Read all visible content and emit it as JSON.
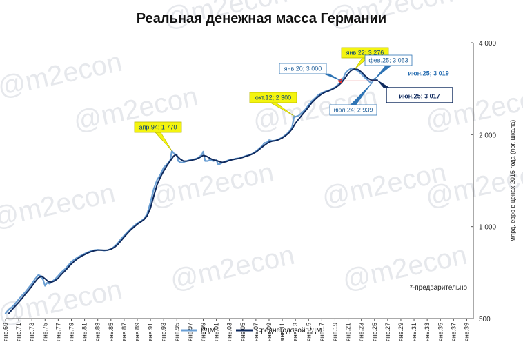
{
  "chart_data": {
    "type": "line",
    "title": "Реальная денежная масса Германии",
    "ylabel": "млрд. евро в ценах 2015 года (лог. шкала)",
    "y_scale": "log",
    "ylim": [
      500,
      4000
    ],
    "y_ticks": [
      500,
      1000,
      2000,
      4000
    ],
    "y_tick_labels": [
      "500",
      "1 000",
      "2 000",
      "4 000"
    ],
    "x_range": [
      1969,
      2040
    ],
    "x_ticks": [
      "янв.69",
      "янв.71",
      "янв.73",
      "янв.75",
      "янв.77",
      "янв.79",
      "янв.81",
      "янв.83",
      "янв.85",
      "янв.87",
      "янв.89",
      "янв.91",
      "янв.93",
      "янв.95",
      "янв.97",
      "янв.99",
      "янв.01",
      "янв.03",
      "янв.05",
      "янв.07",
      "янв.09",
      "янв.11",
      "янв.13",
      "янв.15",
      "янв.17",
      "янв.19",
      "янв.21",
      "янв.23",
      "янв.25",
      "янв.27",
      "янв.29",
      "янв.31",
      "янв.33",
      "янв.35",
      "янв.37",
      "янв.39"
    ],
    "grid": false,
    "legend_position": "bottom",
    "series": [
      {
        "name": "РДМ",
        "color": "#6a9fd4",
        "points": [
          [
            1969.0,
            520
          ],
          [
            1969.5,
            535
          ],
          [
            1970.0,
            545
          ],
          [
            1970.5,
            560
          ],
          [
            1971.0,
            578
          ],
          [
            1971.5,
            595
          ],
          [
            1972.0,
            610
          ],
          [
            1972.5,
            630
          ],
          [
            1973.0,
            650
          ],
          [
            1973.5,
            675
          ],
          [
            1974.0,
            695
          ],
          [
            1974.3,
            690
          ],
          [
            1974.7,
            670
          ],
          [
            1975.0,
            640
          ],
          [
            1975.3,
            655
          ],
          [
            1975.7,
            650
          ],
          [
            1976.0,
            660
          ],
          [
            1976.5,
            672
          ],
          [
            1977.0,
            690
          ],
          [
            1977.5,
            710
          ],
          [
            1978.0,
            725
          ],
          [
            1978.5,
            745
          ],
          [
            1979.0,
            768
          ],
          [
            1979.5,
            782
          ],
          [
            1980.0,
            795
          ],
          [
            1980.5,
            805
          ],
          [
            1981.0,
            815
          ],
          [
            1981.5,
            825
          ],
          [
            1982.0,
            832
          ],
          [
            1982.5,
            838
          ],
          [
            1983.0,
            840
          ],
          [
            1983.5,
            838
          ],
          [
            1984.0,
            835
          ],
          [
            1984.5,
            838
          ],
          [
            1985.0,
            845
          ],
          [
            1985.5,
            860
          ],
          [
            1986.0,
            880
          ],
          [
            1986.5,
            910
          ],
          [
            1987.0,
            935
          ],
          [
            1987.5,
            960
          ],
          [
            1988.0,
            985
          ],
          [
            1988.5,
            1005
          ],
          [
            1989.0,
            1025
          ],
          [
            1989.5,
            1040
          ],
          [
            1990.0,
            1060
          ],
          [
            1990.5,
            1100
          ],
          [
            1991.0,
            1200
          ],
          [
            1991.5,
            1330
          ],
          [
            1992.0,
            1420
          ],
          [
            1992.5,
            1480
          ],
          [
            1993.0,
            1560
          ],
          [
            1993.5,
            1600
          ],
          [
            1994.0,
            1650
          ],
          [
            1994.25,
            1770
          ],
          [
            1994.6,
            1730
          ],
          [
            1995.0,
            1720
          ],
          [
            1995.2,
            1640
          ],
          [
            1995.6,
            1620
          ],
          [
            1996.0,
            1625
          ],
          [
            1996.5,
            1640
          ],
          [
            1997.0,
            1655
          ],
          [
            1997.5,
            1660
          ],
          [
            1998.0,
            1670
          ],
          [
            1998.5,
            1700
          ],
          [
            1998.8,
            1720
          ],
          [
            1999.0,
            1760
          ],
          [
            1999.3,
            1640
          ],
          [
            1999.7,
            1640
          ],
          [
            2000.0,
            1655
          ],
          [
            2000.5,
            1640
          ],
          [
            2001.0,
            1650
          ],
          [
            2001.3,
            1595
          ],
          [
            2001.7,
            1610
          ],
          [
            2002.0,
            1625
          ],
          [
            2002.5,
            1640
          ],
          [
            2003.0,
            1655
          ],
          [
            2003.5,
            1660
          ],
          [
            2004.0,
            1670
          ],
          [
            2004.5,
            1675
          ],
          [
            2005.0,
            1690
          ],
          [
            2005.5,
            1705
          ],
          [
            2006.0,
            1715
          ],
          [
            2006.5,
            1735
          ],
          [
            2007.0,
            1765
          ],
          [
            2007.5,
            1800
          ],
          [
            2008.0,
            1840
          ],
          [
            2008.3,
            1880
          ],
          [
            2008.6,
            1880
          ],
          [
            2009.0,
            1920
          ],
          [
            2009.5,
            1910
          ],
          [
            2010.0,
            1915
          ],
          [
            2010.5,
            1935
          ],
          [
            2011.0,
            1960
          ],
          [
            2011.5,
            1995
          ],
          [
            2012.0,
            2040
          ],
          [
            2012.5,
            2120
          ],
          [
            2012.8,
            2300
          ],
          [
            2013.0,
            2290
          ],
          [
            2013.5,
            2310
          ],
          [
            2014.0,
            2360
          ],
          [
            2014.5,
            2420
          ],
          [
            2015.0,
            2500
          ],
          [
            2015.5,
            2580
          ],
          [
            2016.0,
            2640
          ],
          [
            2016.5,
            2700
          ],
          [
            2017.0,
            2740
          ],
          [
            2017.5,
            2770
          ],
          [
            2018.0,
            2790
          ],
          [
            2018.5,
            2820
          ],
          [
            2019.0,
            2860
          ],
          [
            2019.5,
            2920
          ],
          [
            2020.0,
            3000
          ],
          [
            2020.3,
            3080
          ],
          [
            2020.6,
            3180
          ],
          [
            2021.0,
            3250
          ],
          [
            2021.5,
            3300
          ],
          [
            2022.0,
            3276
          ],
          [
            2022.5,
            3230
          ],
          [
            2023.0,
            3160
          ],
          [
            2023.5,
            3080
          ],
          [
            2024.0,
            3020
          ],
          [
            2024.5,
            2939
          ],
          [
            2025.0,
            3053
          ],
          [
            2025.42,
            3019
          ]
        ]
      },
      {
        "name": "Среднегодовой РДМ",
        "color": "#0f2a5e",
        "points": [
          [
            1969.5,
            520
          ],
          [
            1970.0,
            535
          ],
          [
            1970.5,
            550
          ],
          [
            1971.0,
            565
          ],
          [
            1971.5,
            582
          ],
          [
            1972.0,
            600
          ],
          [
            1972.5,
            618
          ],
          [
            1973.0,
            638
          ],
          [
            1973.5,
            660
          ],
          [
            1974.0,
            680
          ],
          [
            1974.5,
            688
          ],
          [
            1975.0,
            675
          ],
          [
            1975.5,
            660
          ],
          [
            1976.0,
            658
          ],
          [
            1976.5,
            665
          ],
          [
            1977.0,
            678
          ],
          [
            1977.5,
            698
          ],
          [
            1978.0,
            715
          ],
          [
            1978.5,
            735
          ],
          [
            1979.0,
            755
          ],
          [
            1979.5,
            772
          ],
          [
            1980.0,
            787
          ],
          [
            1980.5,
            800
          ],
          [
            1981.0,
            810
          ],
          [
            1981.5,
            820
          ],
          [
            1982.0,
            828
          ],
          [
            1982.5,
            834
          ],
          [
            1983.0,
            838
          ],
          [
            1983.5,
            838
          ],
          [
            1984.0,
            837
          ],
          [
            1984.5,
            838
          ],
          [
            1985.0,
            843
          ],
          [
            1985.5,
            855
          ],
          [
            1986.0,
            872
          ],
          [
            1986.5,
            897
          ],
          [
            1987.0,
            925
          ],
          [
            1987.5,
            950
          ],
          [
            1988.0,
            975
          ],
          [
            1988.5,
            997
          ],
          [
            1989.0,
            1018
          ],
          [
            1989.5,
            1035
          ],
          [
            1990.0,
            1053
          ],
          [
            1990.5,
            1085
          ],
          [
            1991.0,
            1150
          ],
          [
            1991.5,
            1260
          ],
          [
            1992.0,
            1370
          ],
          [
            1992.5,
            1450
          ],
          [
            1993.0,
            1520
          ],
          [
            1993.5,
            1585
          ],
          [
            1994.0,
            1640
          ],
          [
            1994.5,
            1700
          ],
          [
            1994.8,
            1720
          ],
          [
            1995.0,
            1705
          ],
          [
            1995.5,
            1665
          ],
          [
            1996.0,
            1640
          ],
          [
            1996.5,
            1638
          ],
          [
            1997.0,
            1645
          ],
          [
            1997.5,
            1655
          ],
          [
            1998.0,
            1665
          ],
          [
            1998.5,
            1685
          ],
          [
            1999.0,
            1710
          ],
          [
            1999.5,
            1700
          ],
          [
            2000.0,
            1675
          ],
          [
            2000.5,
            1655
          ],
          [
            2001.0,
            1648
          ],
          [
            2001.5,
            1630
          ],
          [
            2002.0,
            1622
          ],
          [
            2002.5,
            1632
          ],
          [
            2003.0,
            1648
          ],
          [
            2003.5,
            1658
          ],
          [
            2004.0,
            1666
          ],
          [
            2004.5,
            1673
          ],
          [
            2005.0,
            1685
          ],
          [
            2005.5,
            1700
          ],
          [
            2006.0,
            1712
          ],
          [
            2006.5,
            1730
          ],
          [
            2007.0,
            1755
          ],
          [
            2007.5,
            1788
          ],
          [
            2008.0,
            1825
          ],
          [
            2008.5,
            1860
          ],
          [
            2009.0,
            1890
          ],
          [
            2009.5,
            1905
          ],
          [
            2010.0,
            1912
          ],
          [
            2010.5,
            1928
          ],
          [
            2011.0,
            1952
          ],
          [
            2011.5,
            1985
          ],
          [
            2012.0,
            2025
          ],
          [
            2012.5,
            2090
          ],
          [
            2013.0,
            2180
          ],
          [
            2013.5,
            2250
          ],
          [
            2014.0,
            2320
          ],
          [
            2014.5,
            2390
          ],
          [
            2015.0,
            2465
          ],
          [
            2015.5,
            2545
          ],
          [
            2016.0,
            2610
          ],
          [
            2016.5,
            2670
          ],
          [
            2017.0,
            2720
          ],
          [
            2017.5,
            2755
          ],
          [
            2018.0,
            2780
          ],
          [
            2018.5,
            2810
          ],
          [
            2019.0,
            2845
          ],
          [
            2019.5,
            2895
          ],
          [
            2020.0,
            2960
          ],
          [
            2020.5,
            3060
          ],
          [
            2021.0,
            3170
          ],
          [
            2021.5,
            3250
          ],
          [
            2022.0,
            3285
          ],
          [
            2022.5,
            3270
          ],
          [
            2023.0,
            3210
          ],
          [
            2023.5,
            3130
          ],
          [
            2024.0,
            3060
          ],
          [
            2024.5,
            3020
          ],
          [
            2025.0,
            3015
          ],
          [
            2025.42,
            3017
          ]
        ]
      }
    ],
    "annotations": [
      {
        "text": "апр.94; 1 770",
        "x": 1994.25,
        "y": 1770,
        "style": "yellow"
      },
      {
        "text": "окт.12; 2 300",
        "x": 2012.8,
        "y": 2300,
        "style": "yellow"
      },
      {
        "text": "янв.22; 3 276",
        "x": 2022.0,
        "y": 3276,
        "style": "yellow"
      },
      {
        "text": "янв.20; 3 000",
        "x": 2020.0,
        "y": 3000,
        "style": "blue"
      },
      {
        "text": "фев.25; 3 053",
        "x": 2025.1,
        "y": 3053,
        "style": "blue"
      },
      {
        "text": "июл.24; 2 939",
        "x": 2024.5,
        "y": 2939,
        "style": "blue"
      },
      {
        "text": "июн.25; 3 019",
        "x": 2025.42,
        "y": 3019,
        "style": "big-light"
      },
      {
        "text": "июн.25; 3 017",
        "x": 2025.42,
        "y": 3017,
        "style": "big-dark"
      }
    ],
    "note": "*-предварительно",
    "watermark": "@m2econ"
  }
}
